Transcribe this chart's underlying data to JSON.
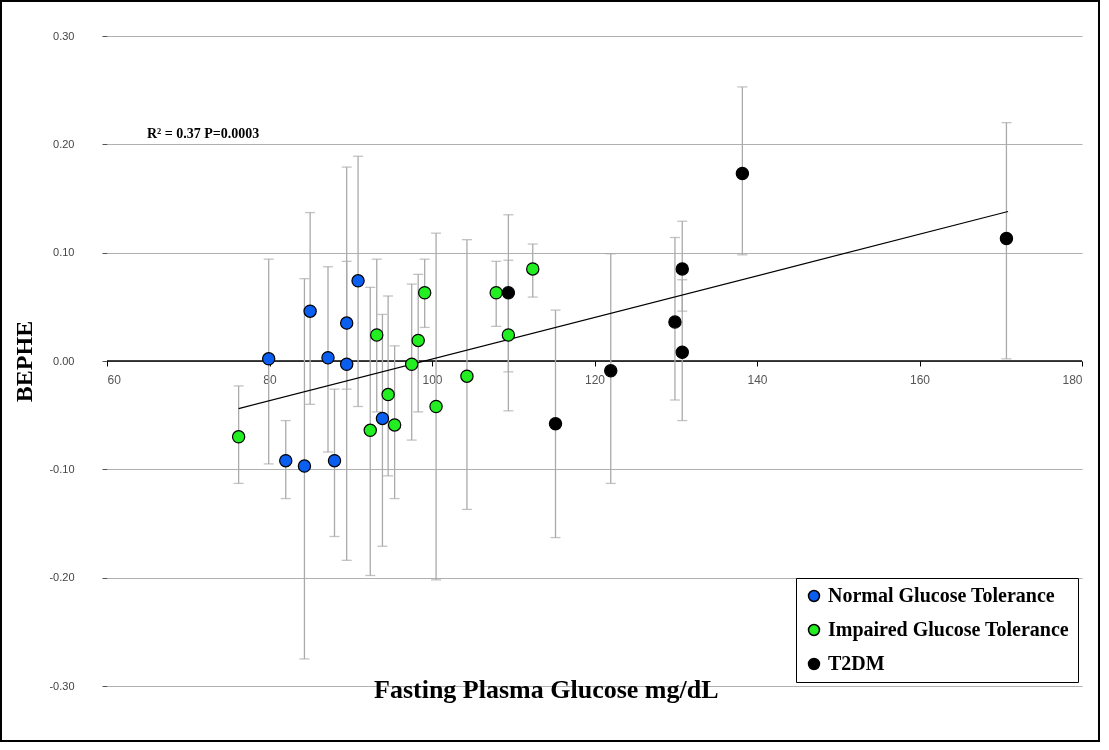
{
  "chart_data": {
    "type": "scatter",
    "xlabel": "Fasting Plasma Glucose  mg/dL",
    "ylabel": "BEPHE",
    "annotations": [
      "R² = 0.37 P=0.0003"
    ],
    "xlim": [
      60,
      180
    ],
    "xticks": [
      60,
      80,
      100,
      120,
      140,
      160,
      180
    ],
    "ylim": [
      -0.3,
      0.3
    ],
    "yticks": [
      {
        "value": -0.3,
        "label": "-0.30"
      },
      {
        "value": -0.2,
        "label": "-0.20"
      },
      {
        "value": -0.1,
        "label": "-0.10"
      },
      {
        "value": 0,
        "label": "0.00"
      },
      {
        "value": 0.1,
        "label": "0.10"
      },
      {
        "value": 0.2,
        "label": "0.20"
      },
      {
        "value": 0.3,
        "label": "0.30"
      }
    ],
    "grid": "y",
    "legend": "bottom right",
    "marker": "circle",
    "series": [
      {
        "name": "Normal Glucose Tolerance",
        "color": "#0a5ef0",
        "x": [
          79.9,
          85.0,
          89.5,
          90.9,
          87.2,
          89.5,
          82.0,
          84.3,
          88.0,
          93.9
        ],
        "values": [
          0.002,
          0.046,
          0.035,
          0.074,
          0.003,
          -0.003,
          -0.092,
          -0.097,
          -0.092,
          -0.053
        ],
        "errors": [
          [
            -0.095,
            0.094
          ],
          [
            -0.04,
            0.137
          ],
          [
            -0.026,
            0.092
          ],
          [
            -0.042,
            0.189
          ],
          [
            -0.084,
            0.087
          ],
          [
            -0.184,
            0.179
          ],
          [
            -0.127,
            -0.055
          ],
          [
            -0.275,
            0.076
          ],
          [
            -0.162,
            -0.026
          ],
          [
            -0.171,
            0.043
          ]
        ]
      },
      {
        "name": "Impaired Glucose Tolerance",
        "color": "#22ee22",
        "x": [
          76.2,
          93.2,
          92.4,
          94.6,
          95.4,
          97.5,
          98.3,
          99.1,
          100.5,
          104.3,
          107.9,
          109.4,
          112.4
        ],
        "values": [
          -0.07,
          0.024,
          -0.064,
          -0.031,
          -0.059,
          -0.003,
          0.019,
          0.063,
          -0.042,
          -0.014,
          0.063,
          0.024,
          0.085
        ],
        "errors": [
          [
            -0.113,
            -0.023
          ],
          [
            -0.047,
            0.094
          ],
          [
            -0.198,
            0.068
          ],
          [
            -0.106,
            0.06
          ],
          [
            -0.127,
            0.014
          ],
          [
            -0.073,
            0.071
          ],
          [
            -0.047,
            0.08
          ],
          [
            0.031,
            0.094
          ],
          [
            -0.202,
            0.118
          ],
          [
            -0.137,
            0.112
          ],
          [
            0.032,
            0.092
          ],
          [
            -0.01,
            0.093
          ],
          [
            0.059,
            0.108
          ]
        ]
      },
      {
        "name": "T2DM",
        "color": "#000000",
        "x": [
          109.4,
          115.2,
          122.0,
          129.9,
          130.8,
          130.8,
          138.2,
          170.7
        ],
        "values": [
          0.063,
          -0.058,
          -0.009,
          0.036,
          0.085,
          0.008,
          0.173,
          0.113
        ],
        "errors": [
          [
            -0.046,
            0.135
          ],
          [
            -0.163,
            0.047
          ],
          [
            -0.113,
            0.099
          ],
          [
            -0.036,
            0.114
          ],
          [
            0.046,
            0.129
          ],
          [
            -0.055,
            0.075
          ],
          [
            0.098,
            0.253
          ],
          [
            0.002,
            0.22
          ]
        ]
      },
      {
        "type": "line",
        "marker": "none",
        "color": "#000000",
        "x": [
          76.2,
          170.9
        ],
        "values": [
          -0.044,
          0.138
        ]
      }
    ]
  }
}
